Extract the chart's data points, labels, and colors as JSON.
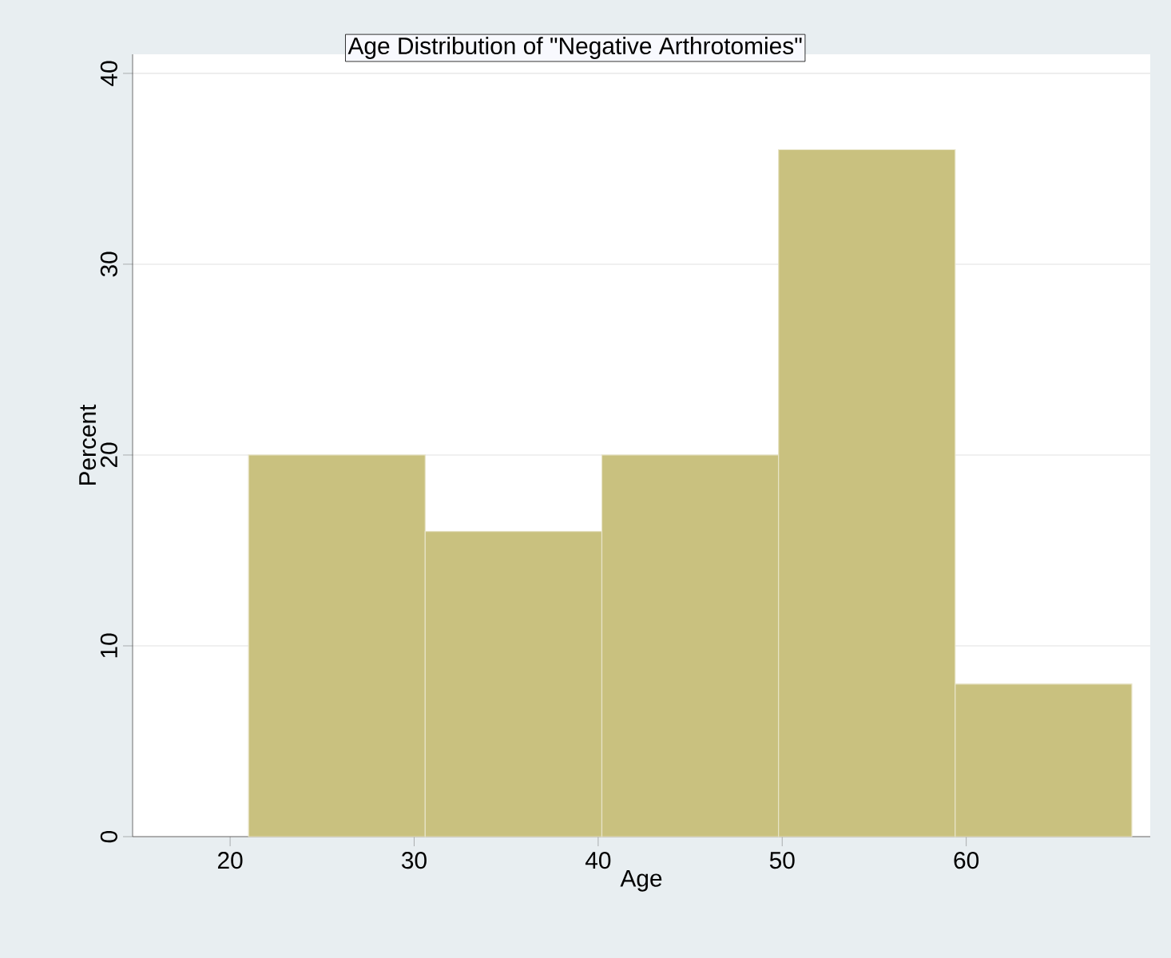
{
  "chart_data": {
    "type": "histogram",
    "title": "Age Distribution of \"Negative Arthrotomies\"",
    "xlabel": "Age",
    "ylabel": "Percent",
    "bins": [
      21,
      30.6,
      40.2,
      49.8,
      59.4,
      69
    ],
    "values": [
      20,
      16,
      20,
      36,
      8
    ],
    "color": "#c9c17f",
    "xlim": [
      14.7,
      70
    ],
    "ylim": [
      0,
      41
    ],
    "xticks": [
      20,
      30,
      40,
      50,
      60
    ],
    "yticks": [
      0,
      10,
      20,
      30,
      40
    ],
    "grid": "y"
  }
}
